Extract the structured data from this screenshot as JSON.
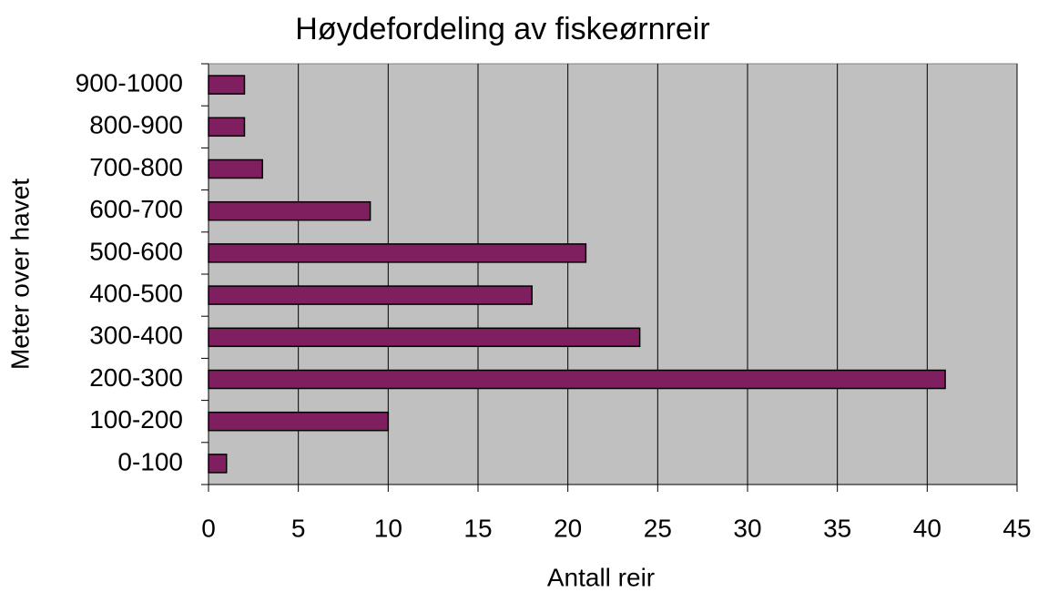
{
  "chart_data": {
    "type": "bar",
    "orientation": "horizontal",
    "title": "Høydefordeling av fiskeørnreir",
    "x_label": "Antall reir",
    "y_label": "Meter over havet",
    "categories": [
      "0-100",
      "100-200",
      "200-300",
      "300-400",
      "400-500",
      "500-600",
      "600-700",
      "700-800",
      "800-900",
      "900-1000"
    ],
    "values": [
      1,
      10,
      41,
      24,
      18,
      21,
      9,
      3,
      2,
      2
    ],
    "color": "#7f1f5f",
    "plot_background": "#c0c0c0",
    "xlim": [
      0,
      45
    ],
    "xticks": [
      0,
      5,
      10,
      15,
      20,
      25,
      30,
      35,
      40,
      45
    ],
    "grid": true
  }
}
